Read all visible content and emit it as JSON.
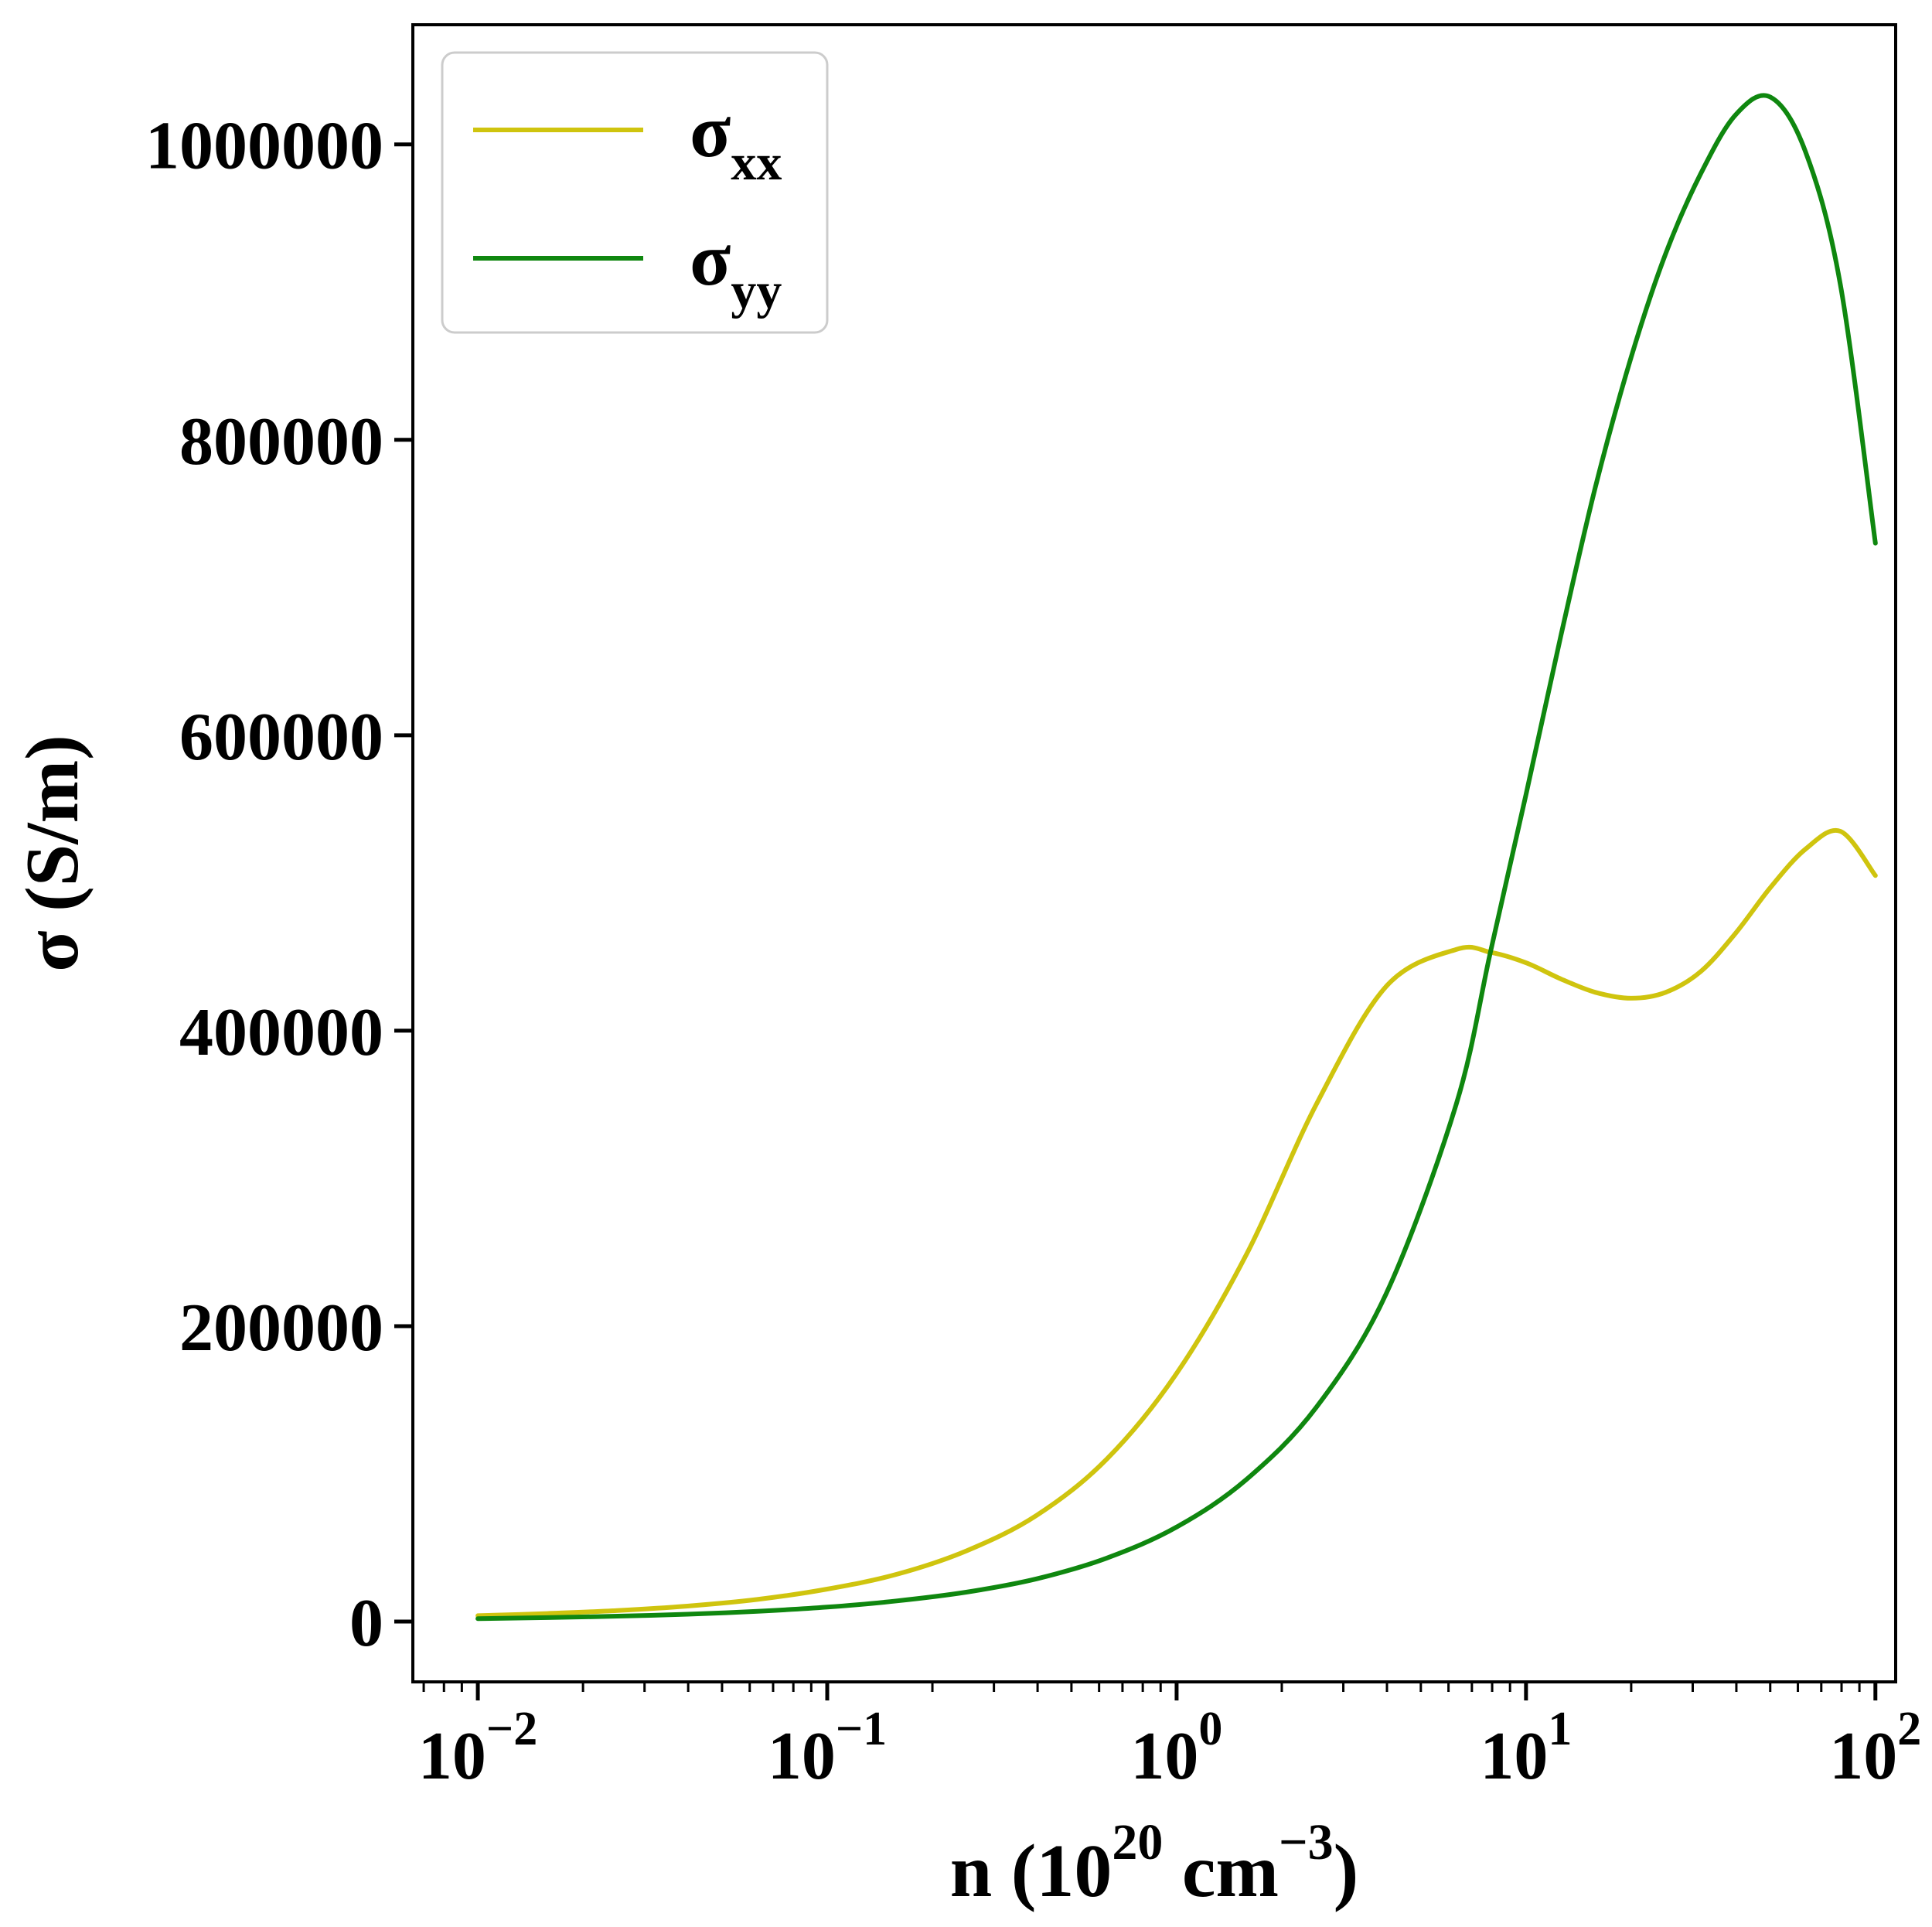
{
  "figure": {
    "background": "#ffffff",
    "spine_color": "#000000",
    "tick_color": "#000000",
    "legend_border": "#cccccc",
    "legend_fill": "rgba(255,255,255,0.85)"
  },
  "chart_data": {
    "type": "line",
    "title": "",
    "x_scale": "log",
    "xlim": [
      0.01,
      100
    ],
    "ylim": [
      0,
      1050000
    ],
    "grid": false,
    "ylabel": "σ (S/m)",
    "xlabel_plain": "n (10^20 cm^-3)",
    "xlabel_parts": [
      {
        "text": "n (10",
        "script": "base"
      },
      {
        "text": "20",
        "script": "sup"
      },
      {
        "text": " cm",
        "script": "base"
      },
      {
        "text": "−3",
        "script": "sup"
      },
      {
        "text": ")",
        "script": "base"
      }
    ],
    "x_ticks": [
      {
        "value": 0.01,
        "base": "10",
        "exp": "−2"
      },
      {
        "value": 0.1,
        "base": "10",
        "exp": "−1"
      },
      {
        "value": 1,
        "base": "10",
        "exp": "0"
      },
      {
        "value": 10,
        "base": "10",
        "exp": "1"
      },
      {
        "value": 100,
        "base": "10",
        "exp": "2"
      }
    ],
    "y_ticks": [
      {
        "value": 0,
        "label": "0"
      },
      {
        "value": 200000,
        "label": "200000"
      },
      {
        "value": 400000,
        "label": "400000"
      },
      {
        "value": 600000,
        "label": "600000"
      },
      {
        "value": 800000,
        "label": "800000"
      },
      {
        "value": 1000000,
        "label": "1000000"
      }
    ],
    "legend": {
      "location": "upper left"
    },
    "x_shared": [
      0.01,
      0.0158,
      0.0251,
      0.0398,
      0.0631,
      0.1,
      0.158,
      0.251,
      0.398,
      0.631,
      1.0,
      1.58,
      2.51,
      3.98,
      6.31,
      7.94,
      10.0,
      12.6,
      15.8,
      20.0,
      25.1,
      31.6,
      39.8,
      50.1,
      63.1,
      79.4,
      100.0
    ],
    "series": [
      {
        "name": "sigma_xx",
        "legend_base": "σ",
        "legend_sub": "xx",
        "color": "#cfc40e",
        "x": [
          0.01,
          0.0158,
          0.0251,
          0.0398,
          0.0631,
          0.1,
          0.158,
          0.251,
          0.398,
          0.631,
          1.0,
          1.58,
          2.51,
          3.98,
          6.31,
          7.94,
          10.0,
          12.6,
          15.8,
          20.0,
          25.1,
          31.6,
          39.8,
          50.1,
          63.1,
          79.4,
          100.0
        ],
        "y": [
          4000,
          5500,
          7500,
          10500,
          15000,
          22000,
          32000,
          48000,
          72000,
          110000,
          168000,
          248000,
          350000,
          430000,
          455000,
          453000,
          446000,
          435000,
          426000,
          422000,
          426000,
          440000,
          466000,
          497000,
          523000,
          535000,
          505000
        ]
      },
      {
        "name": "sigma_yy",
        "legend_base": "σ",
        "legend_sub": "yy",
        "color": "#0f870f",
        "x": [
          0.01,
          0.0158,
          0.0251,
          0.0398,
          0.0631,
          0.1,
          0.158,
          0.251,
          0.398,
          0.631,
          1.0,
          1.58,
          2.51,
          3.98,
          6.31,
          7.94,
          10.0,
          12.6,
          15.8,
          20.0,
          25.1,
          31.6,
          39.8,
          50.1,
          63.1,
          79.4,
          100.0
        ],
        "y": [
          2000,
          2700,
          3700,
          5000,
          7000,
          9800,
          14000,
          20000,
          29000,
          43000,
          64000,
          96000,
          145000,
          222000,
          350000,
          455000,
          560000,
          668000,
          768000,
          856000,
          926000,
          980000,
          1020000,
          1032000,
          995000,
          905000,
          730000
        ]
      }
    ]
  }
}
